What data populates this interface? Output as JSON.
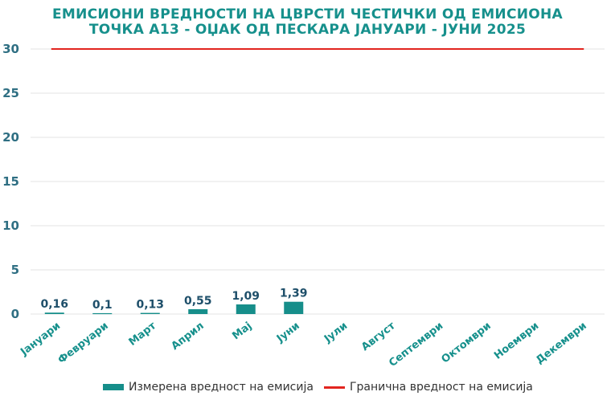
{
  "chart_data": {
    "type": "bar",
    "title_lines": [
      "ЕМИСИОНИ ВРЕДНОСТИ НА ЦВРСТИ ЧЕСТИЧКИ ОД ЕМИСИОНА",
      "ТОЧКА А13 - ОЏАК ОД ПЕСКАРА ЈАНУАРИ - ЈУНИ 2025"
    ],
    "categories": [
      "Јануари",
      "Февруари",
      "Март",
      "Април",
      "Мај",
      "Јуни",
      "Јули",
      "Август",
      "Септември",
      "Октомври",
      "Ноември",
      "Декември"
    ],
    "series": [
      {
        "name": "Измерена вредност на емисија",
        "type": "bar",
        "values": [
          0.16,
          0.1,
          0.13,
          0.55,
          1.09,
          1.39,
          null,
          null,
          null,
          null,
          null,
          null
        ],
        "labels": [
          "0,16",
          "0,1",
          "0,13",
          "0,55",
          "1,09",
          "1,39"
        ],
        "color": "#168e8a"
      },
      {
        "name": "Гранична вредност на емисија",
        "type": "line",
        "value": 30,
        "color": "#e2251f"
      }
    ],
    "yticks": [
      0,
      5,
      10,
      15,
      20,
      25,
      30
    ],
    "ylim": [
      0,
      30
    ],
    "grid": true,
    "legend_position": "bottom"
  }
}
